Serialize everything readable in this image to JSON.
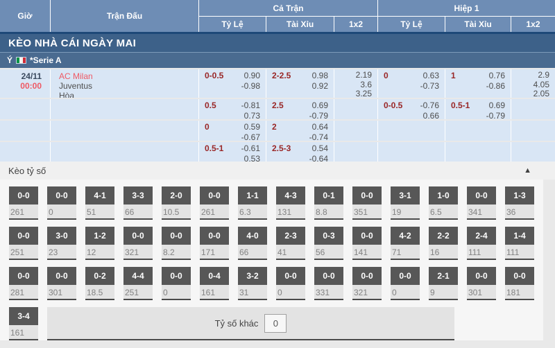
{
  "table": {
    "headers": {
      "time": "Giờ",
      "match": "Trận Đấu",
      "full_time": "Cả Trận",
      "first_half": "Hiệp 1",
      "sub": [
        "Tỷ Lệ",
        "Tài Xỉu",
        "1x2"
      ]
    },
    "section_title": "KÈO NHÀ CÁI NGÀY MAI",
    "league": {
      "country": "Ý",
      "flag_icon": "italy-flag-icon",
      "name": "*Serie A"
    },
    "match": {
      "date": "24/11",
      "time": "00:00",
      "home": "AC Milan",
      "away": "Juventus",
      "draw": "Hòa"
    },
    "odds_rows": [
      {
        "ft_hdp": {
          "line": "0-0.5",
          "top": "0.90",
          "bot": "-0.98"
        },
        "ft_ou": {
          "line": "2-2.5",
          "top": "0.98",
          "bot": "0.92"
        },
        "ft_1x2": [
          "2.19",
          "3.6",
          "3.25"
        ],
        "h1_hdp": {
          "line": "0",
          "top": "0.63",
          "bot": "-0.73"
        },
        "h1_ou": {
          "line": "1",
          "top": "0.76",
          "bot": "-0.86"
        },
        "h1_1x2": [
          "2.9",
          "4.05",
          "2.05"
        ]
      },
      {
        "ft_hdp": {
          "line": "0.5",
          "top": "-0.81",
          "bot": "0.73"
        },
        "ft_ou": {
          "line": "2.5",
          "top": "0.69",
          "bot": "-0.79"
        },
        "ft_1x2": [],
        "h1_hdp": {
          "line": "0-0.5",
          "top": "-0.76",
          "bot": "0.66"
        },
        "h1_ou": {
          "line": "0.5-1",
          "top": "0.69",
          "bot": "-0.79"
        },
        "h1_1x2": []
      },
      {
        "ft_hdp": {
          "line": "0",
          "top": "0.59",
          "bot": "-0.67"
        },
        "ft_ou": {
          "line": "2",
          "top": "0.64",
          "bot": "-0.74"
        },
        "ft_1x2": [],
        "h1_hdp": null,
        "h1_ou": null,
        "h1_1x2": []
      },
      {
        "ft_hdp": {
          "line": "0.5-1",
          "top": "-0.61",
          "bot": "0.53"
        },
        "ft_ou": {
          "line": "2.5-3",
          "top": "0.54",
          "bot": "-0.64"
        },
        "ft_1x2": [],
        "h1_hdp": null,
        "h1_ou": null,
        "h1_1x2": []
      }
    ]
  },
  "score_section": {
    "title": "Kèo tỷ số",
    "collapse_icon": "chevron-up-icon",
    "collapse_glyph": "▲",
    "rows": [
      [
        {
          "score": "0-0",
          "odds": "261"
        },
        {
          "score": "0-0",
          "odds": "0"
        },
        {
          "score": "4-1",
          "odds": "51"
        },
        {
          "score": "3-3",
          "odds": "66"
        },
        {
          "score": "2-0",
          "odds": "10.5"
        },
        {
          "score": "0-0",
          "odds": "261"
        },
        {
          "score": "1-1",
          "odds": "6.3"
        },
        {
          "score": "4-3",
          "odds": "131"
        },
        {
          "score": "0-1",
          "odds": "8.8"
        },
        {
          "score": "0-0",
          "odds": "351"
        },
        {
          "score": "3-1",
          "odds": "19"
        },
        {
          "score": "1-0",
          "odds": "6.5"
        },
        {
          "score": "0-0",
          "odds": "341"
        },
        {
          "score": "1-3",
          "odds": "36"
        }
      ],
      [
        {
          "score": "0-0",
          "odds": "251"
        },
        {
          "score": "3-0",
          "odds": "23"
        },
        {
          "score": "1-2",
          "odds": "12"
        },
        {
          "score": "0-0",
          "odds": "321"
        },
        {
          "score": "0-0",
          "odds": "8.2"
        },
        {
          "score": "0-0",
          "odds": "171"
        },
        {
          "score": "4-0",
          "odds": "66"
        },
        {
          "score": "2-3",
          "odds": "41"
        },
        {
          "score": "0-3",
          "odds": "56"
        },
        {
          "score": "0-0",
          "odds": "141"
        },
        {
          "score": "4-2",
          "odds": "71"
        },
        {
          "score": "2-2",
          "odds": "16"
        },
        {
          "score": "2-4",
          "odds": "111"
        },
        {
          "score": "1-4",
          "odds": "111"
        }
      ],
      [
        {
          "score": "0-0",
          "odds": "281"
        },
        {
          "score": "0-0",
          "odds": "301"
        },
        {
          "score": "0-2",
          "odds": "18.5"
        },
        {
          "score": "4-4",
          "odds": "251"
        },
        {
          "score": "0-0",
          "odds": "0"
        },
        {
          "score": "0-4",
          "odds": "161"
        },
        {
          "score": "3-2",
          "odds": "31"
        },
        {
          "score": "0-0",
          "odds": "0"
        },
        {
          "score": "0-0",
          "odds": "331"
        },
        {
          "score": "0-0",
          "odds": "321"
        },
        {
          "score": "0-0",
          "odds": "0"
        },
        {
          "score": "2-1",
          "odds": "9"
        },
        {
          "score": "0-0",
          "odds": "301"
        },
        {
          "score": "0-0",
          "odds": "181"
        }
      ],
      [
        {
          "score": "3-4",
          "odds": "161"
        }
      ]
    ],
    "other_label": "Tỷ số khác",
    "other_value": "0"
  },
  "colors": {
    "header_bg": "#6e8db5",
    "navy_line": "#1d4878",
    "title_bg": "#3d6189",
    "league_bg": "#4a6b90",
    "row_bg": "#d9e6f5",
    "handicap_red": "#992626",
    "team_red": "#ef5964",
    "score_btn": "#575757",
    "section_bg": "#e9e9e9"
  }
}
